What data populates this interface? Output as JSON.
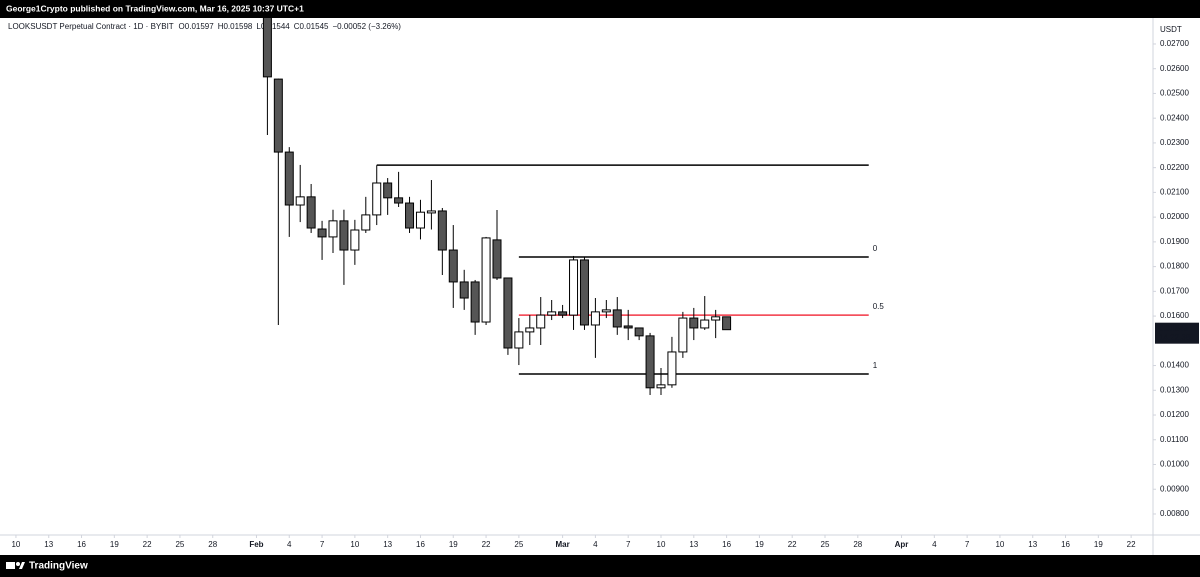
{
  "header": {
    "text": "George1Crypto published on TradingView.com, Mar 16, 2025 10:37 UTC+1"
  },
  "footer": {
    "text": "TradingView"
  },
  "chart_data": {
    "type": "candlestick",
    "title": "LOOKSUSDT Perpetual Contract · 1D · BYBIT",
    "ohlc_text": [
      "O0.01597",
      "H0.01598",
      "L0.01544",
      "C0.01545",
      "−0.00052 (−3.26%)"
    ],
    "y_unit": "USDT",
    "countdown": "14:22:38",
    "x": [
      "Feb 2",
      "Feb 3",
      "Feb 4",
      "Feb 5",
      "Feb 6",
      "Feb 7",
      "Feb 8",
      "Feb 9",
      "Feb 10",
      "Feb 11",
      "Feb 12",
      "Feb 13",
      "Feb 14",
      "Feb 15",
      "Feb 16",
      "Feb 17",
      "Feb 18",
      "Feb 19",
      "Feb 20",
      "Feb 21",
      "Feb 22",
      "Feb 23",
      "Feb 24",
      "Feb 25",
      "Feb 26",
      "Feb 27",
      "Feb 28",
      "Mar 1",
      "Mar 2",
      "Mar 3",
      "Mar 4",
      "Mar 5",
      "Mar 6",
      "Mar 7",
      "Mar 8",
      "Mar 9",
      "Mar 10",
      "Mar 11",
      "Mar 12",
      "Mar 13",
      "Mar 14",
      "Mar 15",
      "Mar 16"
    ],
    "open": [
      0.0285,
      0.02558,
      0.02263,
      0.02049,
      0.02082,
      0.01952,
      0.0192,
      0.01985,
      0.01867,
      0.01948,
      0.02009,
      0.02138,
      0.02078,
      0.02057,
      0.01956,
      0.02017,
      0.02025,
      0.01867,
      0.01738,
      0.01738,
      0.01576,
      0.01908,
      0.01754,
      0.01471,
      0.01536,
      0.01552,
      0.01604,
      0.01617,
      0.01604,
      0.01827,
      0.01564,
      0.01617,
      0.01625,
      0.0156,
      0.01552,
      0.0152,
      0.0131,
      0.01322,
      0.01455,
      0.01592,
      0.01552,
      0.01584,
      0.01597
    ],
    "high": [
      0.0295,
      0.0256,
      0.02283,
      0.02211,
      0.02134,
      0.01985,
      0.0203,
      0.0203,
      0.01989,
      0.02082,
      0.0221,
      0.02158,
      0.02183,
      0.02082,
      0.0207,
      0.0215,
      0.02037,
      0.01968,
      0.01787,
      0.01746,
      0.0192,
      0.02029,
      0.01754,
      0.01592,
      0.01604,
      0.01677,
      0.01665,
      0.01645,
      0.01843,
      0.01839,
      0.01673,
      0.01665,
      0.01677,
      0.01625,
      0.01552,
      0.01532,
      0.0139,
      0.01516,
      0.01617,
      0.01633,
      0.01681,
      0.01625,
      0.01598
    ],
    "low": [
      0.02332,
      0.01564,
      0.0192,
      0.0198,
      0.01936,
      0.01827,
      0.01855,
      0.01726,
      0.01807,
      0.01936,
      0.01968,
      0.02009,
      0.02041,
      0.01936,
      0.0191,
      0.0195,
      0.01766,
      0.01633,
      0.01625,
      0.01524,
      0.01564,
      0.01746,
      0.01443,
      0.01402,
      0.01483,
      0.01483,
      0.01584,
      0.01592,
      0.01544,
      0.01544,
      0.01431,
      0.01592,
      0.01524,
      0.01503,
      0.01503,
      0.01281,
      0.01281,
      0.0131,
      0.01431,
      0.01503,
      0.01544,
      0.01511,
      0.01544
    ],
    "close": [
      0.02567,
      0.02263,
      0.02049,
      0.02082,
      0.01956,
      0.0192,
      0.01985,
      0.01867,
      0.01948,
      0.02009,
      0.02138,
      0.02078,
      0.02057,
      0.01956,
      0.0202,
      0.02025,
      0.01867,
      0.01738,
      0.01673,
      0.01576,
      0.01916,
      0.01754,
      0.01471,
      0.01536,
      0.01552,
      0.01604,
      0.01617,
      0.01604,
      0.01827,
      0.01564,
      0.01617,
      0.01625,
      0.01556,
      0.01552,
      0.0152,
      0.0131,
      0.01322,
      0.01455,
      0.01592,
      0.01552,
      0.01584,
      0.01597,
      0.01545
    ],
    "up_color": "#ffffff",
    "down_color": "#555555",
    "ylim": [
      0.00715,
      0.02805
    ],
    "yticks": [
      {
        "value": 0.027,
        "label": "0.02700"
      },
      {
        "value": 0.026,
        "label": "0.02600"
      },
      {
        "value": 0.025,
        "label": "0.02500"
      },
      {
        "value": 0.024,
        "label": "0.02400"
      },
      {
        "value": 0.023,
        "label": "0.02300"
      },
      {
        "value": 0.022,
        "label": "0.02200"
      },
      {
        "value": 0.021,
        "label": "0.02100"
      },
      {
        "value": 0.02,
        "label": "0.02000"
      },
      {
        "value": 0.019,
        "label": "0.01900"
      },
      {
        "value": 0.018,
        "label": "0.01800"
      },
      {
        "value": 0.017,
        "label": "0.01700"
      },
      {
        "value": 0.016,
        "label": "0.01600"
      },
      {
        "value": 0.014,
        "label": "0.01400"
      },
      {
        "value": 0.013,
        "label": "0.01300"
      },
      {
        "value": 0.012,
        "label": "0.01200"
      },
      {
        "value": 0.011,
        "label": "0.01100"
      },
      {
        "value": 0.01,
        "label": "0.01000"
      },
      {
        "value": 0.009,
        "label": "0.00900"
      },
      {
        "value": 0.008,
        "label": "0.00800"
      }
    ],
    "xlim": [
      "Jan 9",
      "Apr 24"
    ],
    "xticks": [
      {
        "value": "Jan 10",
        "label": "10"
      },
      {
        "value": "Jan 13",
        "label": "13"
      },
      {
        "value": "Jan 16",
        "label": "16"
      },
      {
        "value": "Jan 19",
        "label": "19"
      },
      {
        "value": "Jan 22",
        "label": "22"
      },
      {
        "value": "Jan 25",
        "label": "25"
      },
      {
        "value": "Jan 28",
        "label": "28"
      },
      {
        "value": "Feb 1",
        "label": "Feb"
      },
      {
        "value": "Feb 4",
        "label": "4"
      },
      {
        "value": "Feb 7",
        "label": "7"
      },
      {
        "value": "Feb 10",
        "label": "10"
      },
      {
        "value": "Feb 13",
        "label": "13"
      },
      {
        "value": "Feb 16",
        "label": "16"
      },
      {
        "value": "Feb 19",
        "label": "19"
      },
      {
        "value": "Feb 22",
        "label": "22"
      },
      {
        "value": "Feb 25",
        "label": "25"
      },
      {
        "value": "Mar 1",
        "label": "Mar"
      },
      {
        "value": "Mar 4",
        "label": "4"
      },
      {
        "value": "Mar 7",
        "label": "7"
      },
      {
        "value": "Mar 10",
        "label": "10"
      },
      {
        "value": "Mar 13",
        "label": "13"
      },
      {
        "value": "Mar 16",
        "label": "16"
      },
      {
        "value": "Mar 19",
        "label": "19"
      },
      {
        "value": "Mar 22",
        "label": "22"
      },
      {
        "value": "Mar 25",
        "label": "25"
      },
      {
        "value": "Mar 28",
        "label": "28"
      },
      {
        "value": "Apr 1",
        "label": "Apr"
      },
      {
        "value": "Apr 4",
        "label": "4"
      },
      {
        "value": "Apr 7",
        "label": "7"
      },
      {
        "value": "Apr 10",
        "label": "10"
      },
      {
        "value": "Apr 13",
        "label": "13"
      },
      {
        "value": "Apr 16",
        "label": "16"
      },
      {
        "value": "Apr 19",
        "label": "19"
      },
      {
        "value": "Apr 22",
        "label": "22"
      }
    ],
    "grid": false,
    "hline": {
      "start": "Feb 12",
      "end": "Mar 29",
      "price": 0.0221,
      "color": "#000000"
    },
    "fib": {
      "start": "Feb 25",
      "end": "Mar 29",
      "levels": [
        {
          "label": "0",
          "price": 0.01839,
          "color": "#000000"
        },
        {
          "label": "0.5",
          "price": 0.01604,
          "color": "#f23645"
        },
        {
          "label": "1",
          "price": 0.01366,
          "color": "#000000"
        }
      ]
    }
  }
}
